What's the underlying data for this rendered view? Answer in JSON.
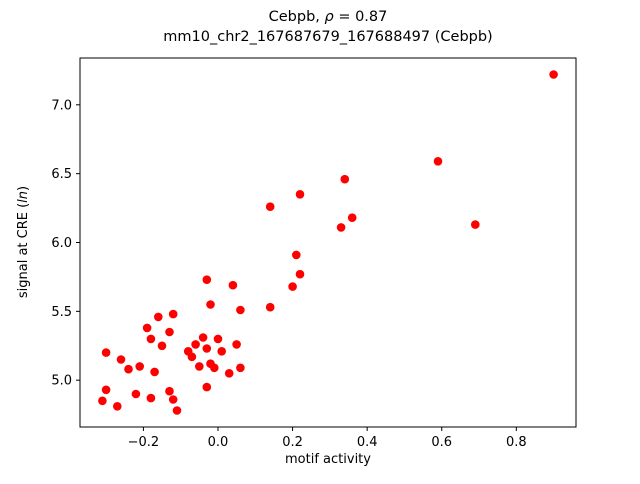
{
  "title": {
    "line1_prefix": "Cebpb, ",
    "line1_rho": "ρ",
    "line1_suffix": " = 0.87",
    "line2": "mm10_chr2_167687679_167688497 (Cebpb)"
  },
  "axis": {
    "xlabel": "motif activity",
    "ylabel_prefix": "signal at CRE (",
    "ylabel_italic": "ln",
    "ylabel_suffix": ")"
  },
  "chart_data": {
    "type": "scatter",
    "title": "Cebpb, ρ = 0.87\nmm10_chr2_167687679_167688497 (Cebpb)",
    "xlabel": "motif activity",
    "ylabel": "signal at CRE (ln)",
    "xlim": [
      -0.37,
      0.96
    ],
    "ylim": [
      4.66,
      7.34
    ],
    "x_ticks": [
      -0.2,
      0.0,
      0.2,
      0.4,
      0.6,
      0.8
    ],
    "x_tick_labels": [
      "−0.2",
      "0.0",
      "0.2",
      "0.4",
      "0.6",
      "0.8"
    ],
    "y_ticks": [
      5.0,
      5.5,
      6.0,
      6.5,
      7.0
    ],
    "y_tick_labels": [
      "5.0",
      "5.5",
      "6.0",
      "6.5",
      "7.0"
    ],
    "grid": false,
    "legend": "none",
    "marker_color": "#ff0000",
    "points": [
      [
        0.9,
        7.22
      ],
      [
        0.59,
        6.59
      ],
      [
        0.69,
        6.13
      ],
      [
        0.34,
        6.46
      ],
      [
        0.36,
        6.18
      ],
      [
        0.33,
        6.11
      ],
      [
        0.22,
        6.35
      ],
      [
        0.14,
        6.26
      ],
      [
        0.21,
        5.91
      ],
      [
        0.22,
        5.77
      ],
      [
        0.2,
        5.68
      ],
      [
        0.14,
        5.53
      ],
      [
        0.04,
        5.69
      ],
      [
        0.06,
        5.51
      ],
      [
        -0.03,
        5.73
      ],
      [
        -0.02,
        5.55
      ],
      [
        -0.12,
        5.48
      ],
      [
        -0.16,
        5.46
      ],
      [
        -0.13,
        5.35
      ],
      [
        -0.19,
        5.38
      ],
      [
        -0.18,
        5.3
      ],
      [
        -0.15,
        5.25
      ],
      [
        -0.21,
        5.1
      ],
      [
        -0.24,
        5.08
      ],
      [
        -0.26,
        5.15
      ],
      [
        -0.3,
        5.2
      ],
      [
        -0.3,
        4.93
      ],
      [
        -0.31,
        4.85
      ],
      [
        -0.27,
        4.81
      ],
      [
        -0.22,
        4.9
      ],
      [
        -0.18,
        4.87
      ],
      [
        -0.17,
        5.06
      ],
      [
        -0.13,
        4.92
      ],
      [
        -0.12,
        4.86
      ],
      [
        -0.11,
        4.78
      ],
      [
        -0.08,
        5.21
      ],
      [
        -0.07,
        5.17
      ],
      [
        -0.06,
        5.26
      ],
      [
        -0.04,
        5.31
      ],
      [
        -0.03,
        5.23
      ],
      [
        -0.02,
        5.12
      ],
      [
        -0.01,
        5.09
      ],
      [
        0.0,
        5.3
      ],
      [
        0.01,
        5.21
      ],
      [
        0.03,
        5.05
      ],
      [
        0.05,
        5.26
      ],
      [
        0.06,
        5.09
      ],
      [
        -0.03,
        4.95
      ],
      [
        -0.05,
        5.1
      ]
    ]
  }
}
